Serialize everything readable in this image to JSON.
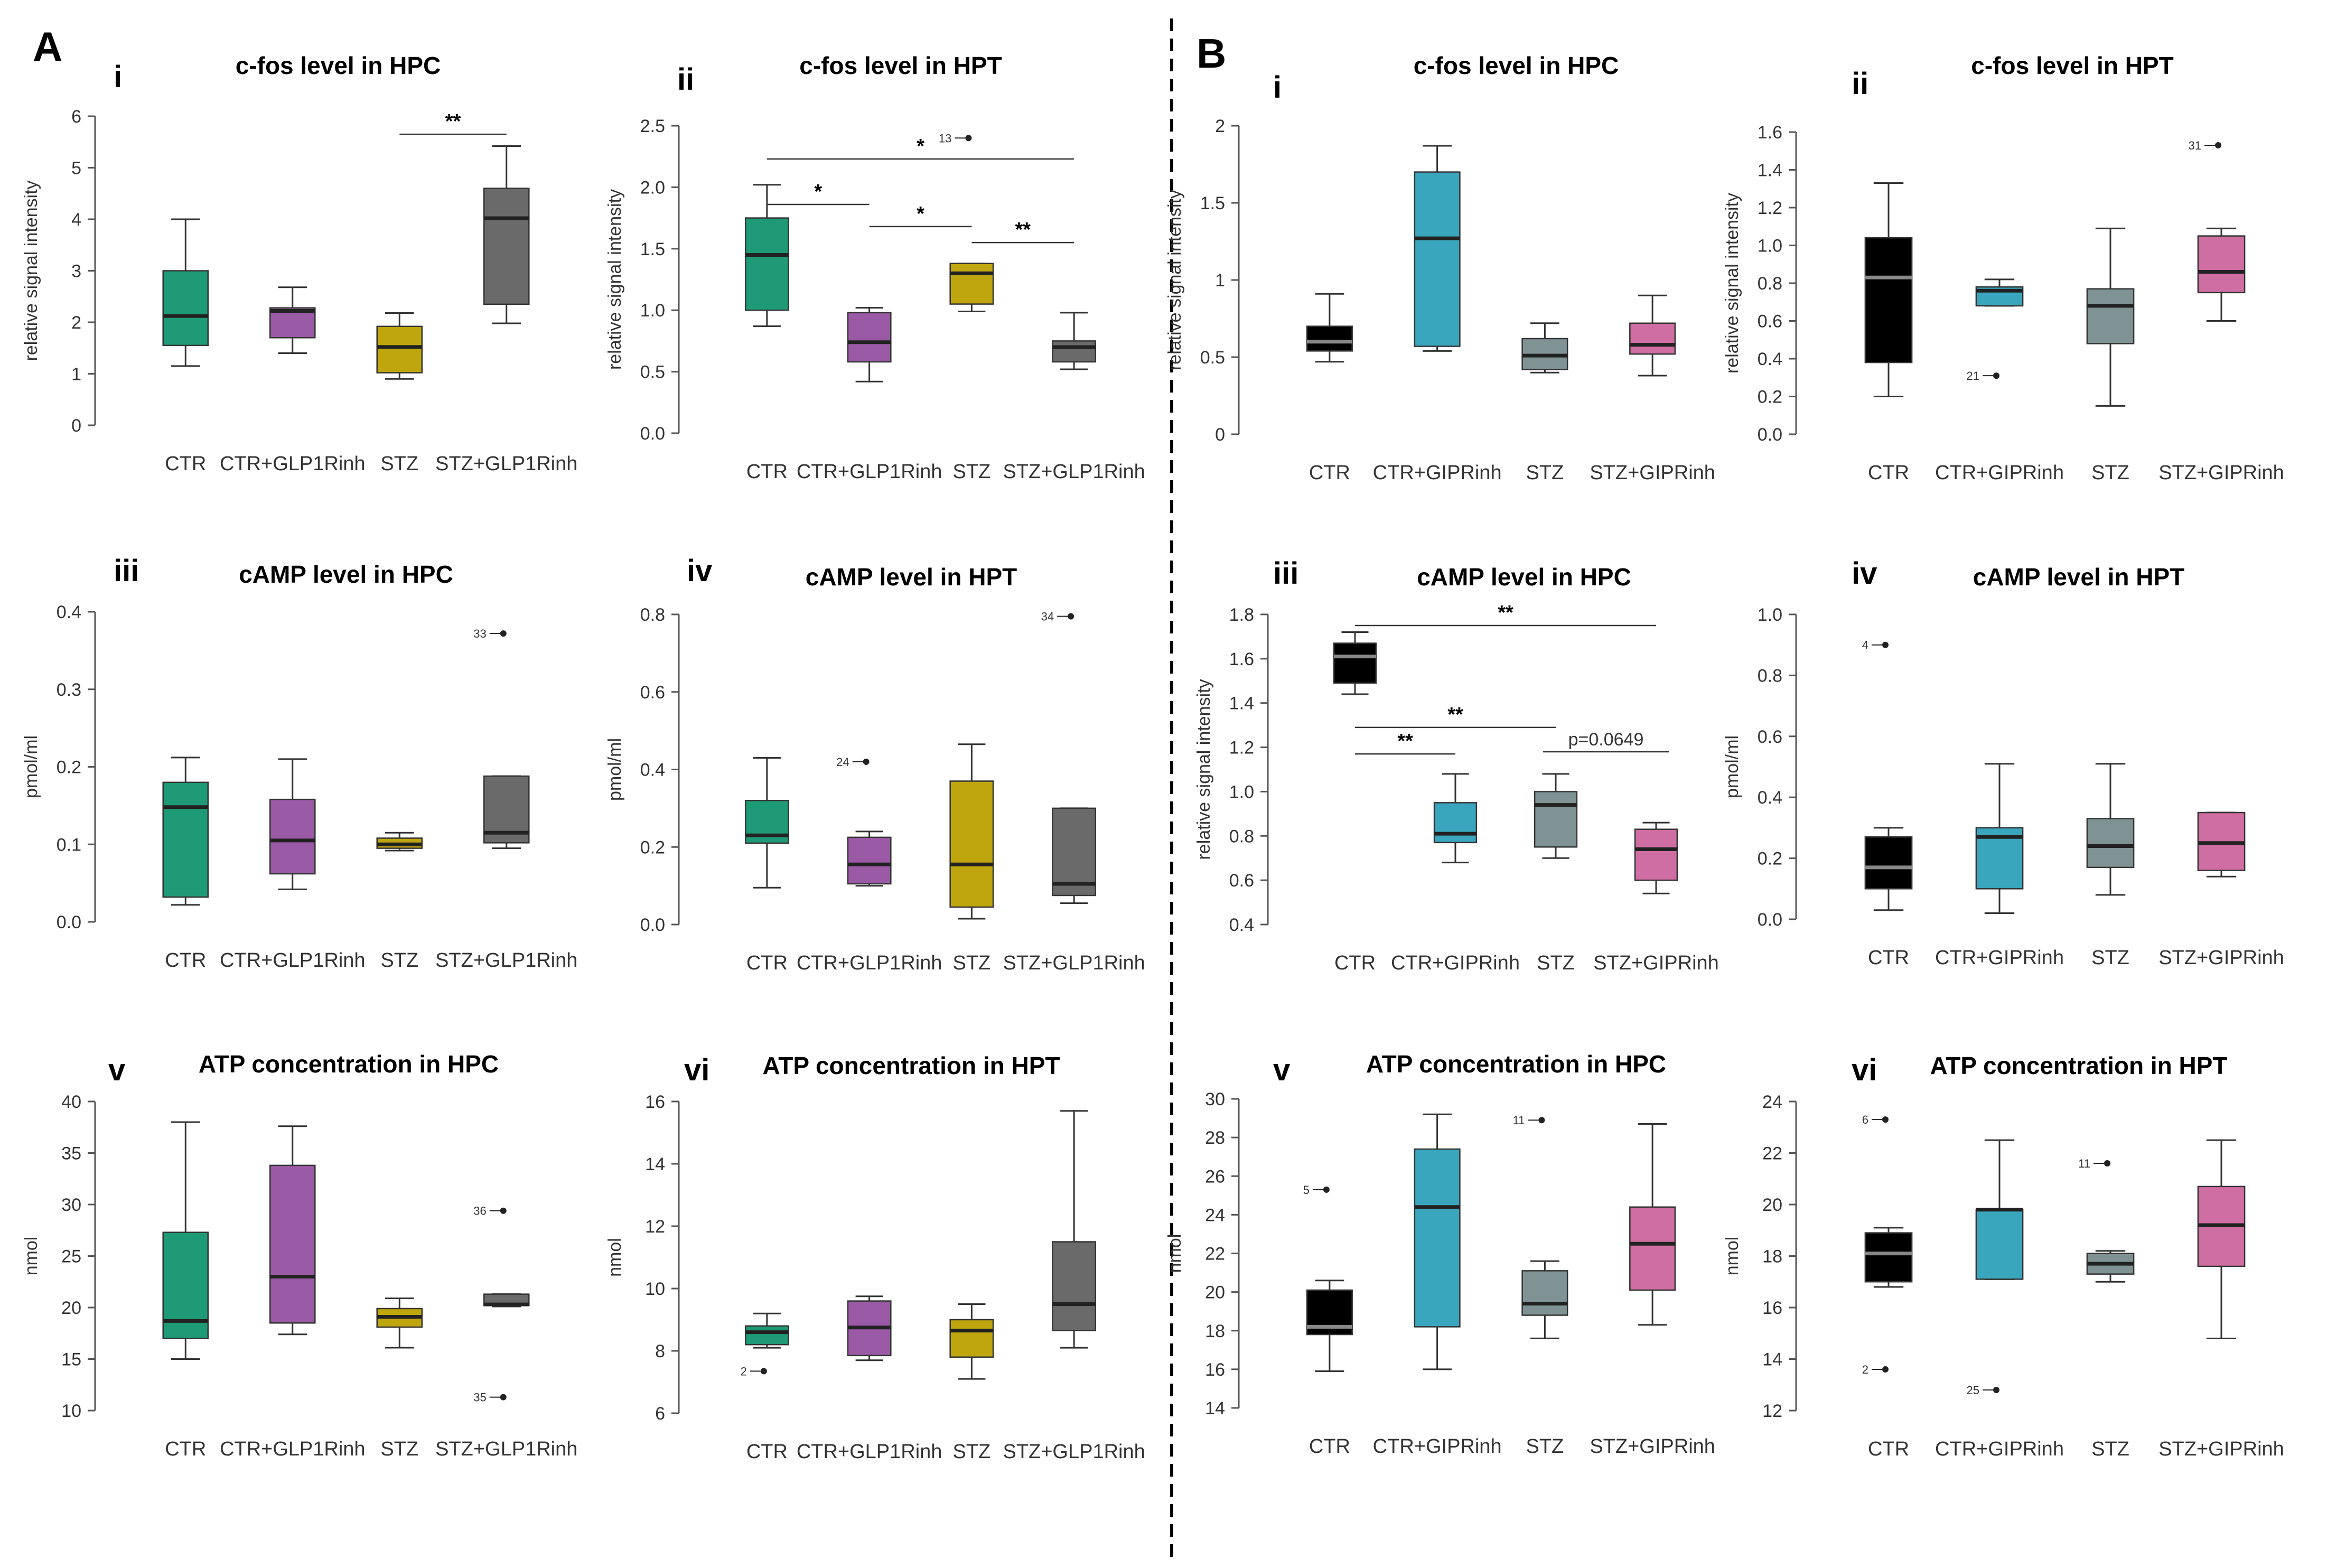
{
  "section_labels": [
    "A",
    "B"
  ],
  "chart_data": [
    {
      "id": "A-i",
      "type": "box",
      "section": "A",
      "roman": "i",
      "title": "c-fos level in HPC",
      "ylabel": "relative signal intensity",
      "ylim": [
        0,
        6
      ],
      "yticks": [
        "0",
        "1",
        "2",
        "3",
        "4",
        "5",
        "6"
      ],
      "categories": [
        "CTR",
        "CTR+GLP1Rinh",
        "STZ",
        "STZ+GLP1Rinh"
      ],
      "colors": [
        "#1f9a77",
        "#9b5aa6",
        "#bfa60f",
        "#6a6a6a"
      ],
      "boxes": [
        {
          "min": 1.15,
          "q1": 1.55,
          "median": 2.12,
          "q3": 3.0,
          "max": 4.0
        },
        {
          "min": 1.4,
          "q1": 1.7,
          "median": 2.22,
          "q3": 2.28,
          "max": 2.68
        },
        {
          "min": 0.9,
          "q1": 1.02,
          "median": 1.52,
          "q3": 1.92,
          "max": 2.18
        },
        {
          "min": 1.98,
          "q1": 2.35,
          "median": 4.02,
          "q3": 4.6,
          "max": 5.42
        }
      ],
      "outliers": [],
      "sig": [
        {
          "from": 2,
          "to": 3,
          "y": 5.65,
          "label": "**"
        }
      ]
    },
    {
      "id": "A-ii",
      "type": "box",
      "section": "A",
      "roman": "ii",
      "title": "c-fos level in HPT",
      "ylabel": "relative signal intensity",
      "ylim": [
        0,
        2.5
      ],
      "yticks": [
        "0.0",
        "0.5",
        "1.0",
        "1.5",
        "2.0",
        "2.5"
      ],
      "categories": [
        "CTR",
        "CTR+GLP1Rinh",
        "STZ",
        "STZ+GLP1Rinh"
      ],
      "colors": [
        "#1f9a77",
        "#9b5aa6",
        "#bfa60f",
        "#6a6a6a"
      ],
      "boxes": [
        {
          "min": 0.87,
          "q1": 1.0,
          "median": 1.45,
          "q3": 1.75,
          "max": 2.02
        },
        {
          "min": 0.42,
          "q1": 0.58,
          "median": 0.74,
          "q3": 0.98,
          "max": 1.02
        },
        {
          "min": 0.99,
          "q1": 1.05,
          "median": 1.3,
          "q3": 1.38,
          "max": 1.38
        },
        {
          "min": 0.52,
          "q1": 0.58,
          "median": 0.7,
          "q3": 0.75,
          "max": 0.98
        }
      ],
      "outliers": [
        {
          "box": 2,
          "value": 2.4,
          "label": "13"
        }
      ],
      "sig": [
        {
          "from": 0,
          "to": 3,
          "y": 2.23,
          "label": "*"
        },
        {
          "from": 0,
          "to": 1,
          "y": 1.86,
          "label": "*"
        },
        {
          "from": 1,
          "to": 2,
          "y": 1.68,
          "label": "*"
        },
        {
          "from": 2,
          "to": 3,
          "y": 1.55,
          "label": "**"
        }
      ]
    },
    {
      "id": "A-iii",
      "type": "box",
      "section": "A",
      "roman": "iii",
      "title": "cAMP level in HPC",
      "ylabel": "pmol/ml",
      "ylim": [
        0,
        0.4
      ],
      "yticks": [
        "0.0",
        "0.1",
        "0.2",
        "0.3",
        "0.4"
      ],
      "categories": [
        "CTR",
        "CTR+GLP1Rinh",
        "STZ",
        "STZ+GLP1Rinh"
      ],
      "colors": [
        "#1f9a77",
        "#9b5aa6",
        "#bfa60f",
        "#6a6a6a"
      ],
      "boxes": [
        {
          "min": 0.022,
          "q1": 0.032,
          "median": 0.148,
          "q3": 0.18,
          "max": 0.212
        },
        {
          "min": 0.042,
          "q1": 0.062,
          "median": 0.105,
          "q3": 0.158,
          "max": 0.21
        },
        {
          "min": 0.092,
          "q1": 0.095,
          "median": 0.1,
          "q3": 0.108,
          "max": 0.115
        },
        {
          "min": 0.095,
          "q1": 0.102,
          "median": 0.115,
          "q3": 0.188,
          "max": 0.188
        }
      ],
      "outliers": [
        {
          "box": 3,
          "value": 0.372,
          "label": "33"
        }
      ],
      "sig": []
    },
    {
      "id": "A-iv",
      "type": "box",
      "section": "A",
      "roman": "iv",
      "title": "cAMP level in HPT",
      "ylabel": "pmol/ml",
      "ylim": [
        0,
        0.8
      ],
      "yticks": [
        "0.0",
        "0.2",
        "0.4",
        "0.6",
        "0.8"
      ],
      "categories": [
        "CTR",
        "CTR+GLP1Rinh",
        "STZ",
        "STZ+GLP1Rinh"
      ],
      "colors": [
        "#1f9a77",
        "#9b5aa6",
        "#bfa60f",
        "#6a6a6a"
      ],
      "boxes": [
        {
          "min": 0.095,
          "q1": 0.21,
          "median": 0.23,
          "q3": 0.32,
          "max": 0.43
        },
        {
          "min": 0.1,
          "q1": 0.105,
          "median": 0.155,
          "q3": 0.225,
          "max": 0.24
        },
        {
          "min": 0.015,
          "q1": 0.045,
          "median": 0.155,
          "q3": 0.37,
          "max": 0.465
        },
        {
          "min": 0.055,
          "q1": 0.075,
          "median": 0.105,
          "q3": 0.3,
          "max": 0.3
        }
      ],
      "outliers": [
        {
          "box": 1,
          "value": 0.42,
          "label": "24"
        },
        {
          "box": 3,
          "value": 0.795,
          "label": "34"
        }
      ],
      "sig": []
    },
    {
      "id": "A-v",
      "type": "box",
      "section": "A",
      "roman": "v",
      "title": "ATP concentration in HPC",
      "ylabel": "nmol",
      "ylim": [
        10,
        40
      ],
      "yticks": [
        "10",
        "15",
        "20",
        "25",
        "30",
        "35",
        "40"
      ],
      "categories": [
        "CTR",
        "CTR+GLP1Rinh",
        "STZ",
        "STZ+GLP1Rinh"
      ],
      "colors": [
        "#1f9a77",
        "#9b5aa6",
        "#bfa60f",
        "#6a6a6a"
      ],
      "boxes": [
        {
          "min": 15.0,
          "q1": 17.0,
          "median": 18.7,
          "q3": 27.3,
          "max": 38.0
        },
        {
          "min": 17.4,
          "q1": 18.5,
          "median": 23.0,
          "q3": 33.8,
          "max": 37.6
        },
        {
          "min": 16.1,
          "q1": 18.1,
          "median": 19.1,
          "q3": 19.9,
          "max": 20.9
        },
        {
          "min": 20.1,
          "q1": 20.2,
          "median": 20.3,
          "q3": 21.3,
          "max": 21.3
        }
      ],
      "outliers": [
        {
          "box": 3,
          "value": 29.4,
          "label": "36"
        },
        {
          "box": 3,
          "value": 11.3,
          "label": "35"
        }
      ],
      "sig": []
    },
    {
      "id": "A-vi",
      "type": "box",
      "section": "A",
      "roman": "vi",
      "title": "ATP concentration in HPT",
      "ylabel": "nmol",
      "ylim": [
        6,
        16
      ],
      "yticks": [
        "6",
        "8",
        "10",
        "12",
        "14",
        "16"
      ],
      "categories": [
        "CTR",
        "CTR+GLP1Rinh",
        "STZ",
        "STZ+GLP1Rinh"
      ],
      "colors": [
        "#1f9a77",
        "#9b5aa6",
        "#bfa60f",
        "#6a6a6a"
      ],
      "boxes": [
        {
          "min": 8.1,
          "q1": 8.2,
          "median": 8.6,
          "q3": 8.8,
          "max": 9.2
        },
        {
          "min": 7.7,
          "q1": 7.85,
          "median": 8.75,
          "q3": 9.6,
          "max": 9.75
        },
        {
          "min": 7.1,
          "q1": 7.8,
          "median": 8.65,
          "q3": 9.0,
          "max": 9.5
        },
        {
          "min": 8.1,
          "q1": 8.65,
          "median": 9.5,
          "q3": 11.5,
          "max": 15.7
        }
      ],
      "outliers": [
        {
          "box": 0,
          "value": 7.35,
          "label": "2"
        }
      ],
      "sig": []
    },
    {
      "id": "B-i",
      "type": "box",
      "section": "B",
      "roman": "i",
      "title": "c-fos level in HPC",
      "ylabel": "relative signal intensity",
      "ylim": [
        0,
        2
      ],
      "yticks": [
        "0",
        "0.5",
        "1",
        "1.5",
        "2"
      ],
      "categories": [
        "CTR",
        "CTR+GIPRinh",
        "STZ",
        "STZ+GIPRinh"
      ],
      "colors": [
        "#000000",
        "#3aa6bd",
        "#7f9294",
        "#cf6ea2"
      ],
      "boxes": [
        {
          "min": 0.47,
          "q1": 0.54,
          "median": 0.6,
          "q3": 0.7,
          "max": 0.91
        },
        {
          "min": 0.54,
          "q1": 0.57,
          "median": 1.27,
          "q3": 1.7,
          "max": 1.87
        },
        {
          "min": 0.4,
          "q1": 0.42,
          "median": 0.51,
          "q3": 0.62,
          "max": 0.72
        },
        {
          "min": 0.38,
          "q1": 0.52,
          "median": 0.58,
          "q3": 0.72,
          "max": 0.9
        }
      ],
      "outliers": [],
      "sig": []
    },
    {
      "id": "B-ii",
      "type": "box",
      "section": "B",
      "roman": "ii",
      "title": "c-fos level in HPT",
      "ylabel": "relative signal intensity",
      "ylim": [
        0,
        1.6
      ],
      "yticks": [
        "0.0",
        "0.2",
        "0.4",
        "0.6",
        "0.8",
        "1.0",
        "1.2",
        "1.4",
        "1.6"
      ],
      "categories": [
        "CTR",
        "CTR+GIPRinh",
        "STZ",
        "STZ+GIPRinh"
      ],
      "colors": [
        "#000000",
        "#3aa6bd",
        "#7f9294",
        "#cf6ea2"
      ],
      "boxes": [
        {
          "min": 0.2,
          "q1": 0.38,
          "median": 0.83,
          "q3": 1.04,
          "max": 1.33
        },
        {
          "min": 0.68,
          "q1": 0.68,
          "median": 0.76,
          "q3": 0.78,
          "max": 0.82
        },
        {
          "min": 0.15,
          "q1": 0.48,
          "median": 0.68,
          "q3": 0.77,
          "max": 1.09
        },
        {
          "min": 0.6,
          "q1": 0.75,
          "median": 0.86,
          "q3": 1.05,
          "max": 1.09
        }
      ],
      "outliers": [
        {
          "box": 1,
          "value": 0.31,
          "label": "21"
        },
        {
          "box": 3,
          "value": 1.53,
          "label": "31"
        }
      ],
      "sig": []
    },
    {
      "id": "B-iii",
      "type": "box",
      "section": "B",
      "roman": "iii",
      "title": "cAMP level in HPC",
      "ylabel": "relative signal intensity",
      "ylim": [
        0.4,
        1.8
      ],
      "yticks": [
        "0.4",
        "0.6",
        "0.8",
        "1.0",
        "1.2",
        "1.4",
        "1.6",
        "1.8"
      ],
      "categories": [
        "CTR",
        "CTR+GIPRinh",
        "STZ",
        "STZ+GIPRinh"
      ],
      "colors": [
        "#000000",
        "#3aa6bd",
        "#7f9294",
        "#cf6ea2"
      ],
      "boxes": [
        {
          "min": 1.44,
          "q1": 1.49,
          "median": 1.61,
          "q3": 1.67,
          "max": 1.72
        },
        {
          "min": 0.68,
          "q1": 0.77,
          "median": 0.81,
          "q3": 0.95,
          "max": 1.08
        },
        {
          "min": 0.7,
          "q1": 0.75,
          "median": 0.94,
          "q3": 1.0,
          "max": 1.08
        },
        {
          "min": 0.54,
          "q1": 0.6,
          "median": 0.74,
          "q3": 0.83,
          "max": 0.86
        }
      ],
      "outliers": [],
      "sig": [
        {
          "from": 0,
          "to": 3,
          "y": 1.75,
          "label": "**"
        },
        {
          "from": 0,
          "to": 2,
          "y": 1.29,
          "label": "**"
        },
        {
          "from": 0,
          "to": 1,
          "y": 1.17,
          "label": "**"
        },
        {
          "from": 2,
          "to": 3,
          "y": 1.18,
          "label": "p=0.0649",
          "nob": true
        }
      ]
    },
    {
      "id": "B-iv",
      "type": "box",
      "section": "B",
      "roman": "iv",
      "title": "cAMP level in HPT",
      "ylabel": "pmol/ml",
      "ylim": [
        0,
        1.0
      ],
      "yticks": [
        "0.0",
        "0.2",
        "0.4",
        "0.6",
        "0.8",
        "1.0"
      ],
      "categories": [
        "CTR",
        "CTR+GIPRinh",
        "STZ",
        "STZ+GIPRinh"
      ],
      "colors": [
        "#000000",
        "#3aa6bd",
        "#7f9294",
        "#cf6ea2"
      ],
      "boxes": [
        {
          "min": 0.03,
          "q1": 0.1,
          "median": 0.17,
          "q3": 0.27,
          "max": 0.3
        },
        {
          "min": 0.02,
          "q1": 0.1,
          "median": 0.27,
          "q3": 0.3,
          "max": 0.51
        },
        {
          "min": 0.08,
          "q1": 0.17,
          "median": 0.24,
          "q3": 0.33,
          "max": 0.51
        },
        {
          "min": 0.14,
          "q1": 0.16,
          "median": 0.25,
          "q3": 0.35,
          "max": 0.35
        }
      ],
      "outliers": [
        {
          "box": 0,
          "value": 0.9,
          "label": "4"
        }
      ],
      "sig": []
    },
    {
      "id": "B-v",
      "type": "box",
      "section": "B",
      "roman": "v",
      "title": "ATP concentration in HPC",
      "ylabel": "nmol",
      "ylim": [
        14,
        30
      ],
      "yticks": [
        "14",
        "16",
        "18",
        "20",
        "22",
        "24",
        "26",
        "28",
        "30"
      ],
      "categories": [
        "CTR",
        "CTR+GIPRinh",
        "STZ",
        "STZ+GIPRinh"
      ],
      "colors": [
        "#000000",
        "#3aa6bd",
        "#7f9294",
        "#cf6ea2"
      ],
      "boxes": [
        {
          "min": 15.9,
          "q1": 17.8,
          "median": 18.2,
          "q3": 20.1,
          "max": 20.6
        },
        {
          "min": 16.0,
          "q1": 18.2,
          "median": 24.4,
          "q3": 27.4,
          "max": 29.2
        },
        {
          "min": 17.6,
          "q1": 18.8,
          "median": 19.4,
          "q3": 21.1,
          "max": 21.6
        },
        {
          "min": 18.3,
          "q1": 20.1,
          "median": 22.5,
          "q3": 24.4,
          "max": 28.7
        }
      ],
      "outliers": [
        {
          "box": 0,
          "value": 25.3,
          "label": "5"
        },
        {
          "box": 2,
          "value": 28.9,
          "label": "11"
        }
      ],
      "sig": []
    },
    {
      "id": "B-vi",
      "type": "box",
      "section": "B",
      "roman": "vi",
      "title": "ATP concentration in HPT",
      "ylabel": "nmol",
      "ylim": [
        12,
        24
      ],
      "yticks": [
        "12",
        "14",
        "16",
        "18",
        "20",
        "22",
        "24"
      ],
      "categories": [
        "CTR",
        "CTR+GIPRinh",
        "STZ",
        "STZ+GIPRinh"
      ],
      "colors": [
        "#000000",
        "#3aa6bd",
        "#7f9294",
        "#cf6ea2"
      ],
      "boxes": [
        {
          "min": 16.8,
          "q1": 17.0,
          "median": 18.1,
          "q3": 18.9,
          "max": 19.1
        },
        {
          "min": 17.1,
          "q1": 17.1,
          "median": 19.8,
          "q3": 19.8,
          "max": 22.5
        },
        {
          "min": 17.0,
          "q1": 17.3,
          "median": 17.7,
          "q3": 18.1,
          "max": 18.2
        },
        {
          "min": 14.8,
          "q1": 17.6,
          "median": 19.2,
          "q3": 20.7,
          "max": 22.5
        }
      ],
      "outliers": [
        {
          "box": 0,
          "value": 23.3,
          "label": "6"
        },
        {
          "box": 0,
          "value": 13.6,
          "label": "2"
        },
        {
          "box": 1,
          "value": 12.8,
          "label": "25"
        },
        {
          "box": 2,
          "value": 21.6,
          "label": "11"
        }
      ],
      "sig": []
    }
  ]
}
